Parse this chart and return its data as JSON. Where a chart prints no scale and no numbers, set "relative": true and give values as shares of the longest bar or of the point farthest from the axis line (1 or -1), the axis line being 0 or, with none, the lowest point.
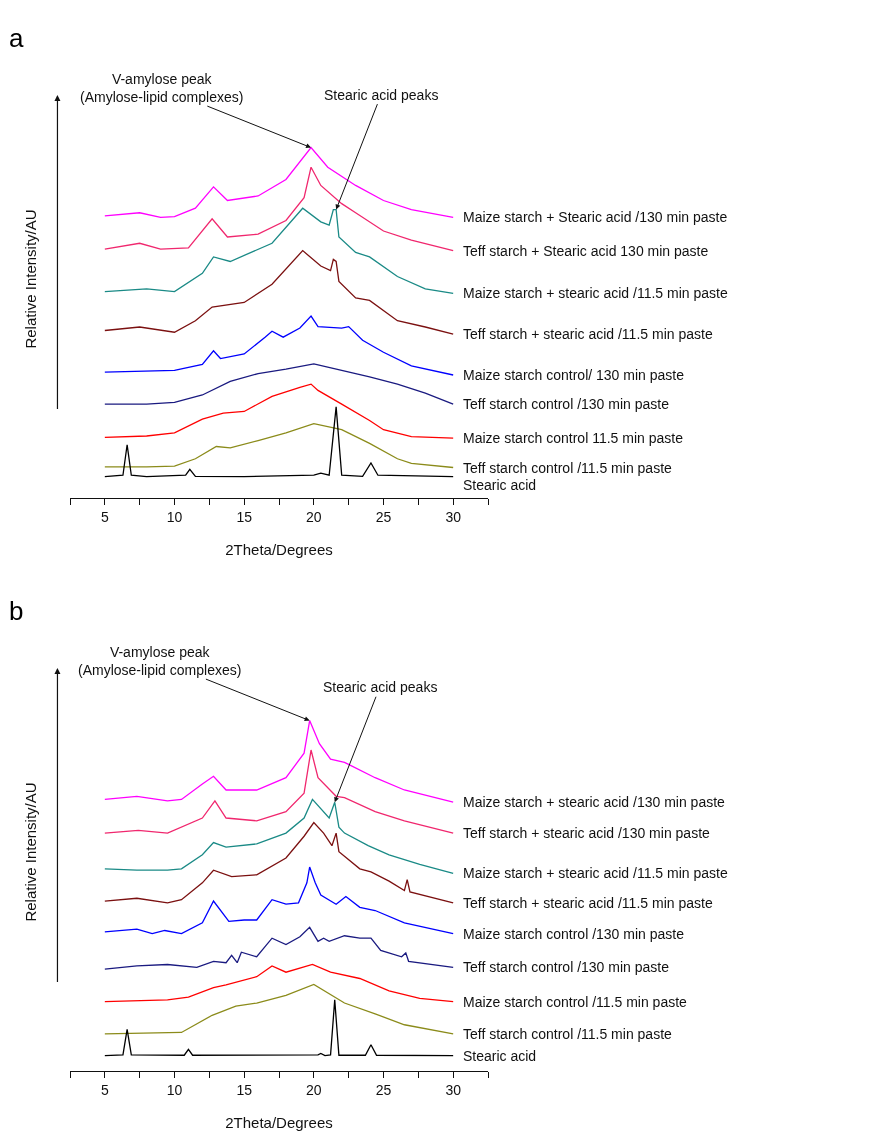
{
  "chart_data": [
    {
      "type": "line",
      "title": "a",
      "xlabel": "2Theta/Degrees",
      "ylabel": "Relative Intensity/AU",
      "relative": true,
      "tick_labels": "x",
      "legend": false,
      "grid": false,
      "xlim": [
        2.5,
        32.5
      ],
      "xticks": [
        {
          "value": 2.5,
          "label": null
        },
        5,
        {
          "value": 7.5,
          "label": null
        },
        10,
        {
          "value": 12.5,
          "label": null
        },
        15,
        {
          "value": 17.5,
          "label": null
        },
        20,
        {
          "value": 22.5,
          "label": null
        },
        25,
        {
          "value": 27.5,
          "label": null
        },
        30,
        {
          "value": 32.5,
          "label": null
        }
      ],
      "annotations": [
        {
          "text": "V-amylose peak\n(Amylose-lipid complexes)",
          "x": 19.8,
          "y": 1.0
        },
        {
          "text": "Stearic acid peaks",
          "x": 21.6,
          "y": 0.823
        }
      ],
      "series": [
        {
          "name": "Maize starch + Stearic acid /130 min paste",
          "color": "#ff00ff",
          "x": [
            5,
            7.5,
            9,
            10,
            11.5,
            12.8,
            13.8,
            16,
            18,
            19.8,
            21,
            23,
            25,
            27,
            30
          ],
          "values": [
            0.805,
            0.814,
            0.801,
            0.803,
            0.827,
            0.888,
            0.849,
            0.862,
            0.909,
            1.0,
            0.944,
            0.892,
            0.849,
            0.823,
            0.801
          ]
        },
        {
          "name": "Teff starch + Stearic acid 130 min paste",
          "color": "#f0276e",
          "x": [
            5,
            7.5,
            9,
            11,
            12.7,
            13.8,
            16,
            18,
            19.3,
            19.8,
            20.5,
            22,
            23,
            25,
            27,
            30
          ],
          "values": [
            0.71,
            0.727,
            0.71,
            0.714,
            0.797,
            0.745,
            0.753,
            0.792,
            0.857,
            0.944,
            0.892,
            0.84,
            0.814,
            0.762,
            0.736,
            0.706
          ]
        },
        {
          "name": "Maize starch + stearic acid /11.5 min paste",
          "color": "#1a8a86",
          "x": [
            5,
            8,
            10,
            12,
            12.8,
            14,
            17,
            19.2,
            20.5,
            21.1,
            21.4,
            21.6,
            21.8,
            23,
            24,
            26,
            28,
            30
          ],
          "values": [
            0.589,
            0.597,
            0.589,
            0.641,
            0.688,
            0.675,
            0.727,
            0.827,
            0.788,
            0.779,
            0.823,
            0.823,
            0.745,
            0.701,
            0.688,
            0.632,
            0.597,
            0.584
          ]
        },
        {
          "name": "Teff starch + stearic acid /11.5 min paste",
          "color": "#7b1010",
          "x": [
            5,
            7.5,
            10,
            11.5,
            12.7,
            15,
            17,
            19.2,
            20.5,
            21.2,
            21.4,
            21.6,
            21.8,
            23,
            24,
            26,
            28,
            30
          ],
          "values": [
            0.478,
            0.488,
            0.473,
            0.506,
            0.545,
            0.558,
            0.61,
            0.706,
            0.662,
            0.649,
            0.681,
            0.675,
            0.618,
            0.571,
            0.564,
            0.506,
            0.488,
            0.468
          ]
        },
        {
          "name": "Maize starch control/ 130 min paste",
          "color": "#0000ff",
          "x": [
            5,
            10,
            12,
            12.8,
            13.3,
            15,
            16.5,
            17,
            17.8,
            19,
            19.8,
            20.3,
            22,
            22.5,
            23.5,
            25,
            27,
            30
          ],
          "values": [
            0.359,
            0.364,
            0.381,
            0.42,
            0.398,
            0.411,
            0.459,
            0.476,
            0.459,
            0.485,
            0.519,
            0.489,
            0.485,
            0.489,
            0.45,
            0.416,
            0.377,
            0.351
          ]
        },
        {
          "name": "Teff starch control /130 min paste",
          "color": "#1a1a80",
          "x": [
            5,
            8,
            10,
            12,
            14,
            16,
            18,
            20,
            22,
            24,
            26,
            28,
            30
          ],
          "values": [
            0.268,
            0.268,
            0.273,
            0.294,
            0.333,
            0.355,
            0.368,
            0.383,
            0.364,
            0.346,
            0.325,
            0.299,
            0.268
          ]
        },
        {
          "name": "Maize starch control 11.5 min paste",
          "color": "#ff0000",
          "x": [
            5,
            8,
            10,
            12,
            13.5,
            15,
            17,
            19,
            19.8,
            20.3,
            22,
            24,
            25,
            27,
            30
          ],
          "values": [
            0.173,
            0.177,
            0.186,
            0.225,
            0.242,
            0.247,
            0.29,
            0.316,
            0.325,
            0.307,
            0.268,
            0.221,
            0.195,
            0.175,
            0.171
          ]
        },
        {
          "name": "Teff starch control /11.5 min paste",
          "color": "#8b8b1a",
          "x": [
            5,
            8,
            10,
            11.5,
            13,
            14,
            16,
            18,
            20,
            22,
            24,
            26,
            27,
            30
          ],
          "values": [
            0.089,
            0.089,
            0.091,
            0.112,
            0.147,
            0.143,
            0.164,
            0.186,
            0.212,
            0.195,
            0.156,
            0.112,
            0.099,
            0.087
          ]
        },
        {
          "name": "Stearic acid",
          "color": "#000000",
          "x": [
            5,
            6.3,
            6.6,
            6.9,
            8,
            10.8,
            11.1,
            11.5,
            15,
            20,
            20.5,
            21.1,
            21.6,
            22,
            23.5,
            24.1,
            24.6,
            30
          ],
          "values": [
            0.061,
            0.065,
            0.152,
            0.065,
            0.061,
            0.065,
            0.082,
            0.062,
            0.061,
            0.065,
            0.071,
            0.065,
            0.26,
            0.065,
            0.062,
            0.1,
            0.065,
            0.061
          ]
        }
      ]
    },
    {
      "type": "line",
      "title": "b",
      "xlabel": "2Theta/Degrees",
      "ylabel": "Relative Intensity/AU",
      "relative": true,
      "tick_labels": "x",
      "legend": false,
      "grid": false,
      "xlim": [
        2.5,
        32.5
      ],
      "xticks": [
        {
          "value": 2.5,
          "label": null
        },
        5,
        {
          "value": 7.5,
          "label": null
        },
        10,
        {
          "value": 12.5,
          "label": null
        },
        15,
        {
          "value": 17.5,
          "label": null
        },
        20,
        {
          "value": 22.5,
          "label": null
        },
        25,
        {
          "value": 27.5,
          "label": null
        },
        30,
        {
          "value": 32.5,
          "label": null
        }
      ],
      "annotations": [
        {
          "text": "V-amylose peak\n(Amylose-lipid complexes)",
          "x": 19.7,
          "y": 1.0
        },
        {
          "text": "Stearic acid peaks",
          "x": 21.5,
          "y": 0.767
        }
      ],
      "series": [
        {
          "name": "Maize starch + stearic acid /130 min paste",
          "color": "#ff00ff",
          "x": [
            5,
            7.3,
            9.5,
            10.5,
            12,
            12.8,
            13.7,
            15.9,
            18,
            19.3,
            19.7,
            20.4,
            21.2,
            22.2,
            24.4,
            26.5,
            30
          ],
          "values": [
            0.775,
            0.784,
            0.771,
            0.775,
            0.819,
            0.841,
            0.802,
            0.802,
            0.837,
            0.907,
            1.0,
            0.934,
            0.89,
            0.881,
            0.837,
            0.802,
            0.767
          ]
        },
        {
          "name": "Teff starch + stearic acid /130 min paste",
          "color": "#f0276e",
          "x": [
            5,
            7.4,
            9.5,
            12,
            12.9,
            13.7,
            15.9,
            18,
            19.3,
            19.8,
            20.3,
            21.6,
            22.2,
            24.4,
            26.5,
            30
          ],
          "values": [
            0.679,
            0.687,
            0.679,
            0.722,
            0.771,
            0.722,
            0.714,
            0.74,
            0.793,
            0.916,
            0.837,
            0.784,
            0.78,
            0.74,
            0.714,
            0.679
          ]
        },
        {
          "name": "Maize starch + stearic acid /11.5 min paste",
          "color": "#1a8a86",
          "x": [
            5,
            7.3,
            9.5,
            10.5,
            12,
            12.8,
            13.7,
            15.9,
            18,
            19.3,
            19.9,
            21.1,
            21.5,
            21.8,
            22.2,
            23.9,
            25.4,
            27.6,
            30
          ],
          "values": [
            0.577,
            0.573,
            0.573,
            0.577,
            0.617,
            0.652,
            0.639,
            0.648,
            0.679,
            0.722,
            0.775,
            0.722,
            0.767,
            0.696,
            0.679,
            0.643,
            0.617,
            0.59,
            0.564
          ]
        },
        {
          "name": "Teff starch + stearic acid /11.5 min paste",
          "color": "#7b1010",
          "x": [
            5,
            7.3,
            9.5,
            10.5,
            12,
            12.8,
            14.1,
            15.9,
            18,
            19.3,
            20.0,
            20.7,
            21.3,
            21.6,
            21.8,
            23.3,
            24.1,
            25.4,
            26.5,
            26.7,
            26.9,
            30
          ],
          "values": [
            0.485,
            0.493,
            0.48,
            0.489,
            0.537,
            0.573,
            0.555,
            0.56,
            0.608,
            0.67,
            0.709,
            0.679,
            0.643,
            0.679,
            0.626,
            0.577,
            0.568,
            0.542,
            0.515,
            0.546,
            0.511,
            0.48
          ]
        },
        {
          "name": "Maize starch control /130 min paste",
          "color": "#0000ff",
          "x": [
            5,
            7.3,
            8.4,
            9.3,
            10.5,
            12,
            12.8,
            13.9,
            15,
            15.9,
            17,
            18,
            18.9,
            19.5,
            19.7,
            20.1,
            20.5,
            21.6,
            22.3,
            23.3,
            24.4,
            26.5,
            30
          ],
          "values": [
            0.397,
            0.405,
            0.392,
            0.401,
            0.392,
            0.423,
            0.485,
            0.427,
            0.431,
            0.431,
            0.489,
            0.476,
            0.48,
            0.537,
            0.582,
            0.537,
            0.502,
            0.476,
            0.498,
            0.467,
            0.458,
            0.423,
            0.392
          ]
        },
        {
          "name": "Teff starch control /130 min paste",
          "color": "#1a1a80",
          "x": [
            5,
            7.3,
            9.5,
            11.6,
            12.8,
            13.7,
            14.1,
            14.5,
            14.8,
            15.9,
            17,
            18,
            19,
            19.7,
            20.3,
            20.7,
            21.1,
            22.2,
            23.3,
            24.1,
            24.8,
            26.3,
            26.6,
            26.8,
            30
          ],
          "values": [
            0.291,
            0.3,
            0.304,
            0.296,
            0.313,
            0.309,
            0.33,
            0.309,
            0.339,
            0.326,
            0.379,
            0.361,
            0.383,
            0.41,
            0.37,
            0.379,
            0.37,
            0.386,
            0.379,
            0.379,
            0.344,
            0.326,
            0.337,
            0.313,
            0.296
          ]
        },
        {
          "name": "Maize starch control /11.5 min paste",
          "color": "#ff0000",
          "x": [
            5,
            9.5,
            11,
            12.8,
            13.7,
            15.9,
            17,
            18,
            19.9,
            21.2,
            23.3,
            25.4,
            27.6,
            30
          ],
          "values": [
            0.198,
            0.203,
            0.211,
            0.238,
            0.246,
            0.269,
            0.3,
            0.282,
            0.304,
            0.282,
            0.264,
            0.229,
            0.207,
            0.198
          ]
        },
        {
          "name": "Teff starch control /11.5 min paste",
          "color": "#8b8b1a",
          "x": [
            5,
            10.5,
            12.7,
            14.4,
            15.9,
            18,
            20,
            22.2,
            24.4,
            26.5,
            30
          ],
          "values": [
            0.106,
            0.11,
            0.159,
            0.185,
            0.194,
            0.216,
            0.247,
            0.194,
            0.163,
            0.132,
            0.106
          ]
        },
        {
          "name": "Stearic acid",
          "color": "#000000",
          "x": [
            5,
            6.3,
            6.6,
            6.9,
            10.7,
            11.0,
            11.3,
            20.3,
            20.5,
            20.8,
            21.2,
            21.5,
            21.8,
            23.7,
            24.1,
            24.5,
            30
          ],
          "values": [
            0.044,
            0.046,
            0.119,
            0.046,
            0.045,
            0.062,
            0.045,
            0.046,
            0.05,
            0.044,
            0.046,
            0.203,
            0.045,
            0.045,
            0.075,
            0.045,
            0.044
          ]
        }
      ]
    }
  ]
}
